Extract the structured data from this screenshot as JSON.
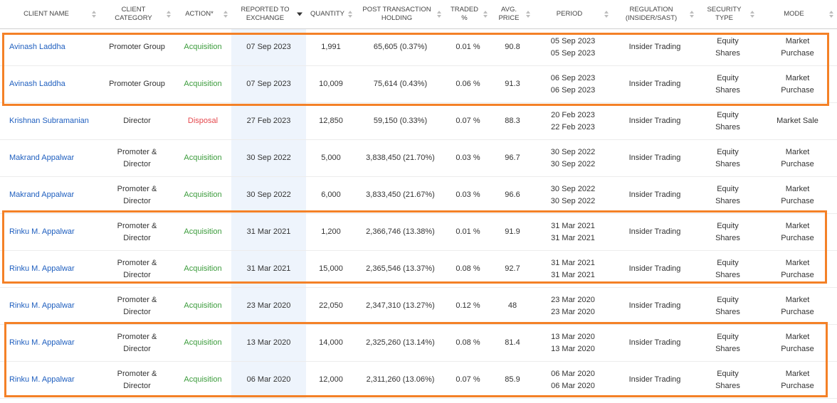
{
  "columns": [
    {
      "key": "client_name",
      "label": "CLIENT NAME",
      "width": 140
    },
    {
      "key": "client_category",
      "label": "CLIENT CATEGORY",
      "width": 105
    },
    {
      "key": "action",
      "label": "ACTION*",
      "width": 80
    },
    {
      "key": "reported",
      "label": "REPORTED TO EXCHANGE",
      "width": 105
    },
    {
      "key": "quantity",
      "label": "QUANTITY",
      "width": 70
    },
    {
      "key": "holding",
      "label": "POST TRANSACTION HOLDING",
      "width": 125
    },
    {
      "key": "traded",
      "label": "TRADED %",
      "width": 65
    },
    {
      "key": "avg_price",
      "label": "AVG. PRICE",
      "width": 60
    },
    {
      "key": "period",
      "label": "PERIOD",
      "width": 110
    },
    {
      "key": "regulation",
      "label": "REGULATION (INSIDER/SAST)",
      "width": 120
    },
    {
      "key": "security",
      "label": "SECURITY TYPE",
      "width": 85
    },
    {
      "key": "mode",
      "label": "MODE",
      "width": 111
    }
  ],
  "rows": [
    {
      "client_name": "Avinash Laddha",
      "client_category": "Promoter Group",
      "action": "Acquisition",
      "reported": "07 Sep 2023",
      "quantity": "1,991",
      "holding": "65,605 (0.37%)",
      "traded": "0.01 %",
      "avg_price": "90.8",
      "period": "05 Sep 2023\n05 Sep 2023",
      "regulation": "Insider Trading",
      "security": "Equity\nShares",
      "mode": "Market\nPurchase"
    },
    {
      "client_name": "Avinash Laddha",
      "client_category": "Promoter Group",
      "action": "Acquisition",
      "reported": "07 Sep 2023",
      "quantity": "10,009",
      "holding": "75,614 (0.43%)",
      "traded": "0.06 %",
      "avg_price": "91.3",
      "period": "06 Sep 2023\n06 Sep 2023",
      "regulation": "Insider Trading",
      "security": "Equity\nShares",
      "mode": "Market\nPurchase"
    },
    {
      "client_name": "Krishnan Subramanian",
      "client_category": "Director",
      "action": "Disposal",
      "reported": "27 Feb 2023",
      "quantity": "12,850",
      "holding": "59,150 (0.33%)",
      "traded": "0.07 %",
      "avg_price": "88.3",
      "period": "20 Feb 2023\n22 Feb 2023",
      "regulation": "Insider Trading",
      "security": "Equity\nShares",
      "mode": "Market Sale"
    },
    {
      "client_name": "Makrand Appalwar",
      "client_category": "Promoter &\nDirector",
      "action": "Acquisition",
      "reported": "30 Sep 2022",
      "quantity": "5,000",
      "holding": "3,838,450 (21.70%)",
      "traded": "0.03 %",
      "avg_price": "96.7",
      "period": "30 Sep 2022\n30 Sep 2022",
      "regulation": "Insider Trading",
      "security": "Equity\nShares",
      "mode": "Market\nPurchase"
    },
    {
      "client_name": "Makrand Appalwar",
      "client_category": "Promoter &\nDirector",
      "action": "Acquisition",
      "reported": "30 Sep 2022",
      "quantity": "6,000",
      "holding": "3,833,450 (21.67%)",
      "traded": "0.03 %",
      "avg_price": "96.6",
      "period": "30 Sep 2022\n30 Sep 2022",
      "regulation": "Insider Trading",
      "security": "Equity\nShares",
      "mode": "Market\nPurchase"
    },
    {
      "client_name": "Rinku M. Appalwar",
      "client_category": "Promoter &\nDirector",
      "action": "Acquisition",
      "reported": "31 Mar 2021",
      "quantity": "1,200",
      "holding": "2,366,746 (13.38%)",
      "traded": "0.01 %",
      "avg_price": "91.9",
      "period": "31 Mar 2021\n31 Mar 2021",
      "regulation": "Insider Trading",
      "security": "Equity\nShares",
      "mode": "Market\nPurchase"
    },
    {
      "client_name": "Rinku M. Appalwar",
      "client_category": "Promoter &\nDirector",
      "action": "Acquisition",
      "reported": "31 Mar 2021",
      "quantity": "15,000",
      "holding": "2,365,546 (13.37%)",
      "traded": "0.08 %",
      "avg_price": "92.7",
      "period": "31 Mar 2021\n31 Mar 2021",
      "regulation": "Insider Trading",
      "security": "Equity\nShares",
      "mode": "Market\nPurchase"
    },
    {
      "client_name": "Rinku M. Appalwar",
      "client_category": "Promoter &\nDirector",
      "action": "Acquisition",
      "reported": "23 Mar 2020",
      "quantity": "22,050",
      "holding": "2,347,310 (13.27%)",
      "traded": "0.12 %",
      "avg_price": "48",
      "period": "23 Mar 2020\n23 Mar 2020",
      "regulation": "Insider Trading",
      "security": "Equity\nShares",
      "mode": "Market\nPurchase"
    },
    {
      "client_name": "Rinku M. Appalwar",
      "client_category": "Promoter &\nDirector",
      "action": "Acquisition",
      "reported": "13 Mar 2020",
      "quantity": "14,000",
      "holding": "2,325,260 (13.14%)",
      "traded": "0.08 %",
      "avg_price": "81.4",
      "period": "13 Mar 2020\n13 Mar 2020",
      "regulation": "Insider Trading",
      "security": "Equity\nShares",
      "mode": "Market\nPurchase"
    },
    {
      "client_name": "Rinku M. Appalwar",
      "client_category": "Promoter &\nDirector",
      "action": "Acquisition",
      "reported": "06 Mar 2020",
      "quantity": "12,000",
      "holding": "2,311,260 (13.06%)",
      "traded": "0.07 %",
      "avg_price": "85.9",
      "period": "06 Mar 2020\n06 Mar 2020",
      "regulation": "Insider Trading",
      "security": "Equity\nShares",
      "mode": "Market\nPurchase"
    }
  ],
  "sort": {
    "active_column": "reported",
    "direction": "desc"
  },
  "colors": {
    "link": "#1f5fbf",
    "acquisition": "#3c9c3c",
    "disposal": "#e5484d",
    "highlight": "#f48127",
    "sorted_column_bg": "#eef4fc"
  }
}
